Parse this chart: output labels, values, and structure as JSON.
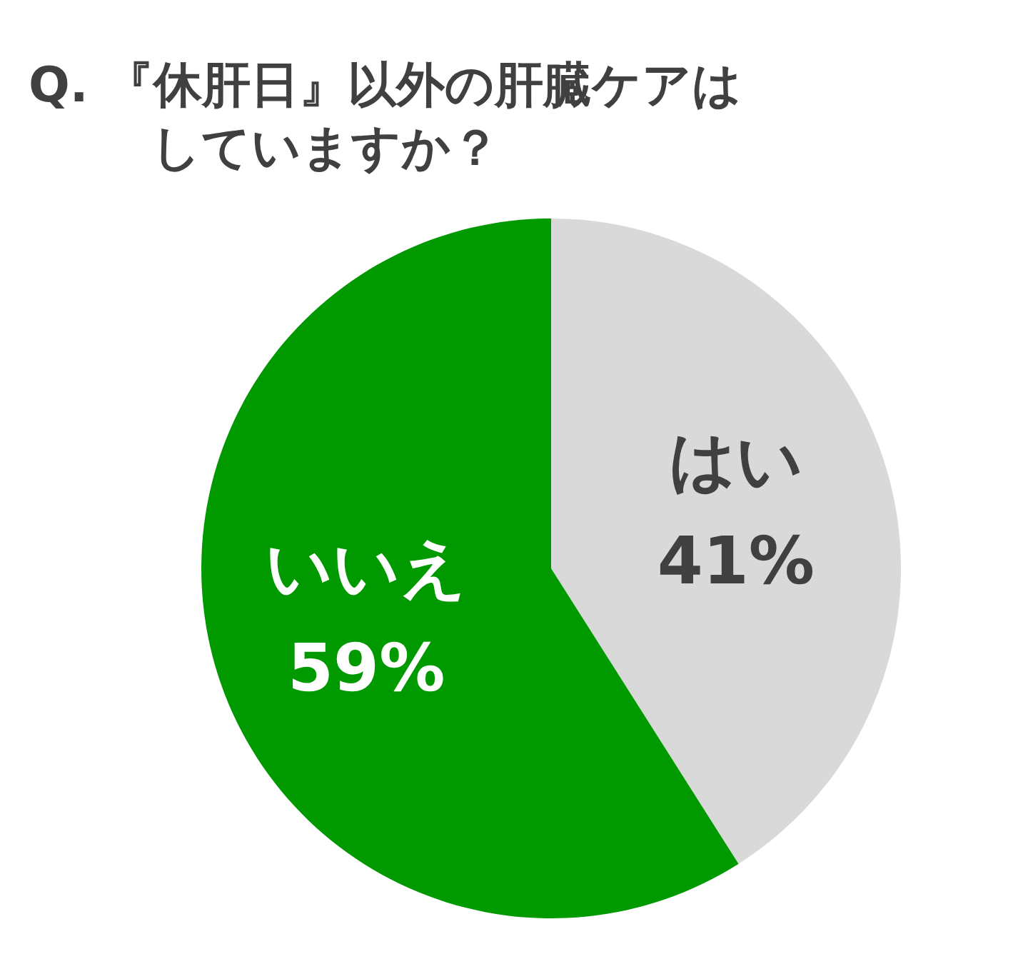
{
  "chart_data": {
    "type": "pie",
    "title": "Q. 『休肝日』以外の肝臓ケアはしていますか？",
    "categories": [
      "はい",
      "いいえ"
    ],
    "values": [
      41,
      59
    ],
    "colors": [
      "#d9d9d9",
      "#009a00"
    ],
    "value_labels": [
      "41%",
      "59%"
    ],
    "legend": false
  }
}
